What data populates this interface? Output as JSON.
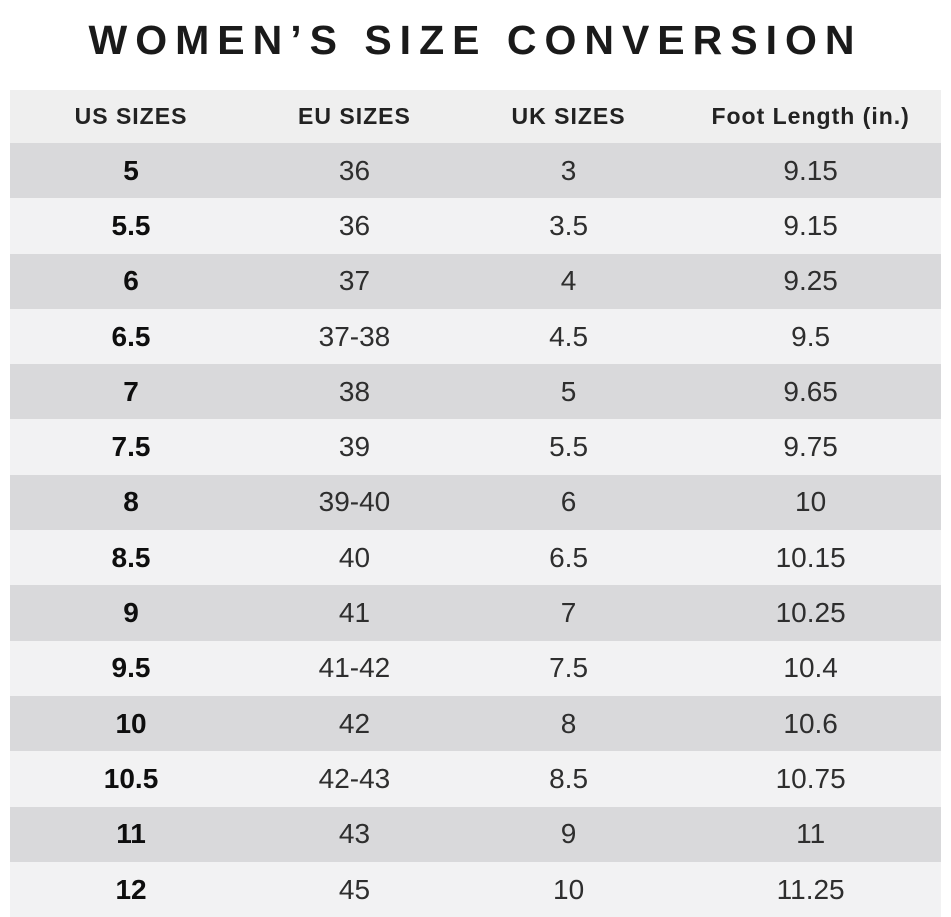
{
  "chart_data": {
    "type": "table",
    "title": "WOMEN’S SIZE CONVERSION",
    "columns": [
      "US SIZES",
      "EU SIZES",
      "UK SIZES",
      "Foot Length (in.)"
    ],
    "rows": [
      [
        "5",
        "36",
        "3",
        "9.15"
      ],
      [
        "5.5",
        "36",
        "3.5",
        "9.15"
      ],
      [
        "6",
        "37",
        "4",
        "9.25"
      ],
      [
        "6.5",
        "37-38",
        "4.5",
        "9.5"
      ],
      [
        "7",
        "38",
        "5",
        "9.65"
      ],
      [
        "7.5",
        "39",
        "5.5",
        "9.75"
      ],
      [
        "8",
        "39-40",
        "6",
        "10"
      ],
      [
        "8.5",
        "40",
        "6.5",
        "10.15"
      ],
      [
        "9",
        "41",
        "7",
        "10.25"
      ],
      [
        "9.5",
        "41-42",
        "7.5",
        "10.4"
      ],
      [
        "10",
        "42",
        "8",
        "10.6"
      ],
      [
        "10.5",
        "42-43",
        "8.5",
        "10.75"
      ],
      [
        "11",
        "43",
        "9",
        "11"
      ],
      [
        "12",
        "45",
        "10",
        "11.25"
      ]
    ],
    "colors": {
      "header_bg": "#efefef",
      "row_dark": "#d9d9db",
      "row_light": "#f2f2f3",
      "title_text": "#1a1a1a"
    }
  }
}
